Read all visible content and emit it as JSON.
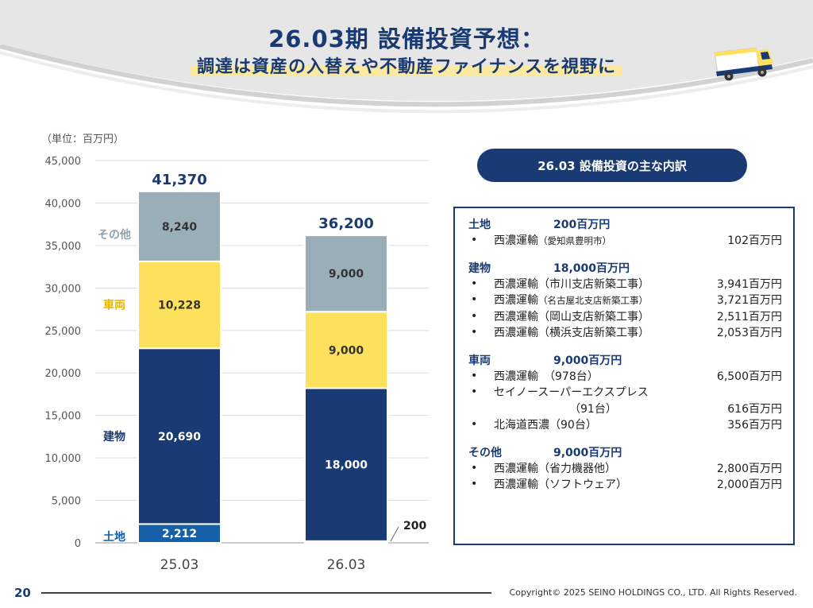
{
  "header": {
    "title": "26.03期 設備投資予想：",
    "subtitle": "調達は資産の入替えや不動産ファイナンスを視野に"
  },
  "unit_label": "（単位：百万円）",
  "colors": {
    "land": "#1560a8",
    "building": "#1a3a73",
    "vehicle": "#fde15d",
    "other": "#9aaeb8",
    "title": "#1a3a73"
  },
  "chart_data": {
    "type": "bar",
    "stacked": true,
    "categories": [
      "25.03",
      "26.03"
    ],
    "series": [
      {
        "name": "土地",
        "values": [
          2212,
          200
        ]
      },
      {
        "name": "建物",
        "values": [
          20690,
          18000
        ]
      },
      {
        "name": "車両",
        "values": [
          10228,
          9000
        ]
      },
      {
        "name": "その他",
        "values": [
          8240,
          9000
        ]
      }
    ],
    "totals": [
      "41,370",
      "36,200"
    ],
    "segment_labels": [
      [
        "2,212",
        "20,690",
        "10,228",
        "8,240"
      ],
      [
        "200",
        "18,000",
        "9,000",
        "9,000"
      ]
    ],
    "yticks": [
      "0",
      "5,000",
      "10,000",
      "15,000",
      "20,000",
      "25,000",
      "30,000",
      "35,000",
      "40,000",
      "45,000"
    ],
    "ylim": [
      0,
      45000
    ],
    "grid": true,
    "legend_placement": "left-inline"
  },
  "breakdown": {
    "title": "26.03 設備投資の主な内訳",
    "sections": [
      {
        "name": "土地",
        "total": "200百万円",
        "items": [
          {
            "desc": "西濃運輸",
            "note": "（愛知県豊明市）",
            "amount": "102百万円"
          }
        ]
      },
      {
        "name": "建物",
        "total": "18,000百万円",
        "items": [
          {
            "desc": "西濃運輸（市川支店新築工事）",
            "note": "",
            "amount": "3,941百万円"
          },
          {
            "desc": "西濃運輸",
            "note": "（名古屋北支店新築工事）",
            "amount": "3,721百万円"
          },
          {
            "desc": "西濃運輸（岡山支店新築工事）",
            "note": "",
            "amount": "2,511百万円"
          },
          {
            "desc": "西濃運輸（横浜支店新築工事）",
            "note": "",
            "amount": "2,053百万円"
          }
        ]
      },
      {
        "name": "車両",
        "total": "9,000百万円",
        "items": [
          {
            "desc": "西濃運輸　（978台）",
            "note": "",
            "amount": "6,500百万円"
          },
          {
            "desc": "セイノースーパーエクスプレス",
            "note": "",
            "amount": ""
          },
          {
            "desc": "（91台）",
            "note": "",
            "amount": "616百万円",
            "continuation": true
          },
          {
            "desc": "北海道西濃（90台）",
            "note": "",
            "amount": "356百万円"
          }
        ]
      },
      {
        "name": "その他",
        "total": "9,000百万円",
        "items": [
          {
            "desc": "西濃運輸（省力機器他）",
            "note": "",
            "amount": "2,800百万円"
          },
          {
            "desc": "西濃運輸（ソフトウェア）",
            "note": "",
            "amount": "2,000百万円"
          }
        ]
      }
    ]
  },
  "footer": {
    "page_number": "20",
    "copyright": "Copyright© 2025  SEINO HOLDINGS CO., LTD.  All  Rights Reserved."
  }
}
